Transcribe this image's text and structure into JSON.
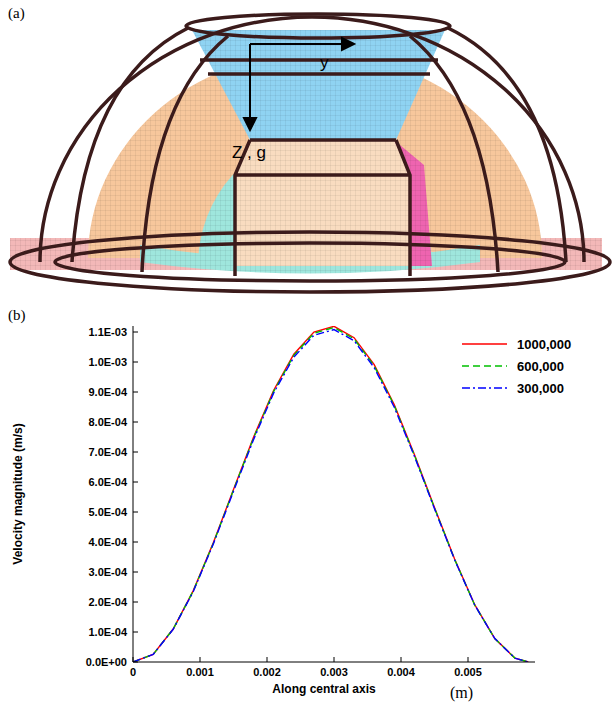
{
  "panel_a": {
    "letter": "(a)",
    "axis_labels": [
      "y",
      "Z , g"
    ]
  },
  "chart_data": {
    "type": "line",
    "panel_letter": "(b)",
    "x_label": "Along central axis",
    "x_unit": "(m)",
    "y_label": "Velocity magnitude (m/s)",
    "x": [
      0,
      0.0003,
      0.0006,
      0.0009,
      0.0012,
      0.0015,
      0.0018,
      0.0021,
      0.0024,
      0.0027,
      0.003,
      0.0033,
      0.0036,
      0.0039,
      0.0042,
      0.0045,
      0.0048,
      0.0051,
      0.0054,
      0.0057,
      0.0059
    ],
    "series": [
      {
        "name": "1000,000",
        "color": "#ff0000",
        "line_style": "solid",
        "values": [
          0,
          2.5e-05,
          0.00011,
          0.000238,
          0.000398,
          0.000575,
          0.00075,
          0.000906,
          0.001026,
          0.0011,
          0.001119,
          0.001081,
          0.000991,
          0.000857,
          0.000692,
          0.000515,
          0.000343,
          0.000191,
          7.8e-05,
          1.3e-05,
          0
        ]
      },
      {
        "name": "600,000",
        "color": "#00c000",
        "line_style": "dashed",
        "values": [
          0,
          2.5e-05,
          0.00011,
          0.000237,
          0.000396,
          0.000573,
          0.000747,
          0.000902,
          0.001022,
          0.001096,
          0.001115,
          0.001077,
          0.000987,
          0.000854,
          0.000689,
          0.000513,
          0.000342,
          0.00019,
          7.8e-05,
          1.3e-05,
          0
        ]
      },
      {
        "name": "300,000",
        "color": "#0000ff",
        "line_style": "dashdot",
        "values": [
          0,
          2.5e-05,
          0.000109,
          0.000235,
          0.000394,
          0.000569,
          0.000742,
          0.000897,
          0.001016,
          0.001089,
          0.001108,
          0.001071,
          0.000981,
          0.000849,
          0.000686,
          0.000511,
          0.000341,
          0.00019,
          7.8e-05,
          1.3e-05,
          0
        ]
      }
    ],
    "xlim": [
      0,
      0.006
    ],
    "xticks": [
      0,
      0.001,
      0.002,
      0.003,
      0.004,
      0.005
    ],
    "ylim": [
      0,
      0.00112
    ],
    "yticks": [
      {
        "value": 0,
        "label": "0.0E+00"
      },
      {
        "value": 0.0001,
        "label": "1.0E-04"
      },
      {
        "value": 0.0002,
        "label": "2.0E-04"
      },
      {
        "value": 0.0003,
        "label": "3.0E-04"
      },
      {
        "value": 0.0004,
        "label": "4.0E-04"
      },
      {
        "value": 0.0005,
        "label": "5.0E-04"
      },
      {
        "value": 0.0006,
        "label": "6.0E-04"
      },
      {
        "value": 0.0007,
        "label": "7.0E-04"
      },
      {
        "value": 0.0008,
        "label": "8.0E-04"
      },
      {
        "value": 0.0009,
        "label": "9.0E-04"
      },
      {
        "value": 0.001,
        "label": "1.0E-03"
      },
      {
        "value": 0.0011,
        "label": "1.1E-03"
      }
    ],
    "grid": false,
    "legend": "top-right"
  }
}
